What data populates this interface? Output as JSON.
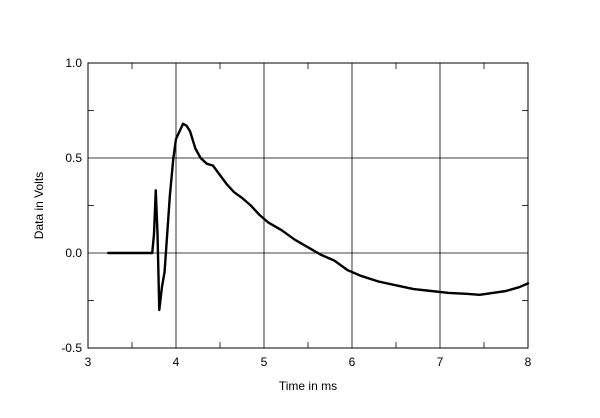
{
  "chart_data": {
    "type": "line",
    "title": "",
    "xlabel": "Time in ms",
    "ylabel": "Data in Volts",
    "xlim": [
      3,
      8
    ],
    "ylim": [
      -0.5,
      1.0
    ],
    "grid": true,
    "x_ticks": [
      {
        "value": 3,
        "label": "3"
      },
      {
        "value": 4,
        "label": "4"
      },
      {
        "value": 5,
        "label": "5"
      },
      {
        "value": 6,
        "label": "6"
      },
      {
        "value": 7,
        "label": "7"
      },
      {
        "value": 8,
        "label": "8"
      }
    ],
    "y_ticks": [
      {
        "value": -0.5,
        "label": "-0.5"
      },
      {
        "value": 0.0,
        "label": "0.0"
      },
      {
        "value": 0.5,
        "label": "0.5"
      },
      {
        "value": 1.0,
        "label": "1.0"
      }
    ],
    "series": [
      {
        "color": "#000000",
        "points": [
          [
            3.23,
            0.0
          ],
          [
            3.5,
            0.0
          ],
          [
            3.73,
            0.0
          ],
          [
            3.75,
            0.1
          ],
          [
            3.77,
            0.33
          ],
          [
            3.79,
            0.1
          ],
          [
            3.81,
            -0.3
          ],
          [
            3.84,
            -0.18
          ],
          [
            3.87,
            -0.1
          ],
          [
            3.9,
            0.1
          ],
          [
            3.93,
            0.3
          ],
          [
            3.97,
            0.5
          ],
          [
            4.0,
            0.6
          ],
          [
            4.04,
            0.64
          ],
          [
            4.08,
            0.68
          ],
          [
            4.12,
            0.67
          ],
          [
            4.16,
            0.64
          ],
          [
            4.22,
            0.55
          ],
          [
            4.28,
            0.5
          ],
          [
            4.35,
            0.47
          ],
          [
            4.42,
            0.46
          ],
          [
            4.5,
            0.41
          ],
          [
            4.58,
            0.36
          ],
          [
            4.66,
            0.32
          ],
          [
            4.75,
            0.29
          ],
          [
            4.85,
            0.25
          ],
          [
            4.95,
            0.2
          ],
          [
            5.05,
            0.16
          ],
          [
            5.2,
            0.12
          ],
          [
            5.35,
            0.07
          ],
          [
            5.5,
            0.03
          ],
          [
            5.65,
            -0.01
          ],
          [
            5.8,
            -0.04
          ],
          [
            5.95,
            -0.09
          ],
          [
            6.1,
            -0.12
          ],
          [
            6.3,
            -0.15
          ],
          [
            6.5,
            -0.17
          ],
          [
            6.7,
            -0.19
          ],
          [
            6.9,
            -0.2
          ],
          [
            7.1,
            -0.21
          ],
          [
            7.3,
            -0.215
          ],
          [
            7.45,
            -0.22
          ],
          [
            7.6,
            -0.21
          ],
          [
            7.75,
            -0.2
          ],
          [
            7.9,
            -0.18
          ],
          [
            8.0,
            -0.16
          ]
        ]
      }
    ]
  }
}
